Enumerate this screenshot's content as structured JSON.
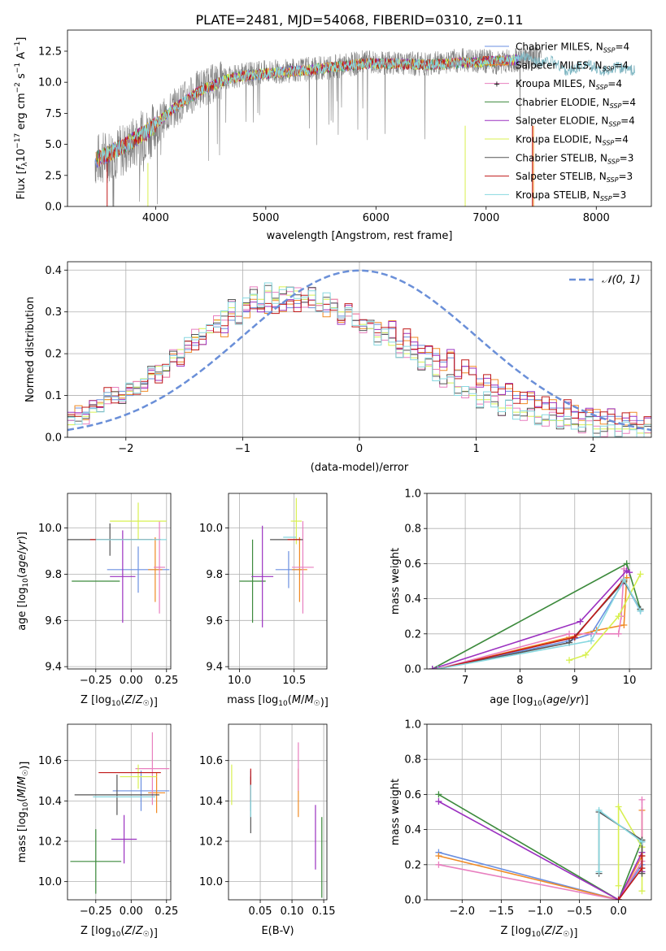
{
  "figure_title": "PLATE=2481, MJD=54068, FIBERID=0310, z=0.11",
  "colors": {
    "Chabrier MILES": "#6a8fe0",
    "Salpeter MILES": "#f08a24",
    "Kroupa MILES": "#e87fbf",
    "Chabrier ELODIE": "#3c8a3c",
    "Salpeter ELODIE": "#9b30c0",
    "Kroupa ELODIE": "#d8f050",
    "Chabrier STELIB": "#555555",
    "Salpeter STELIB": "#c01818",
    "Kroupa STELIB": "#88d8e0",
    "normal": "#6a8fd8",
    "grid": "#b0b0b0"
  },
  "chart_data": [
    {
      "id": "spectrum",
      "type": "line",
      "xlabel": "wavelength [Angstrom, rest frame]",
      "ylabel": "Flux [f_λ 10^-17 erg cm^-2 s^-1 A^-1]",
      "xlim": [
        3200,
        8500
      ],
      "ylim": [
        0,
        14.2
      ],
      "xticks": [
        4000,
        5000,
        6000,
        7000,
        8000
      ],
      "yticks": [
        0.0,
        2.5,
        5.0,
        7.5,
        10.0,
        12.5
      ],
      "grid": false,
      "legend_position": "top-right",
      "legend": [
        "Chabrier MILES, N_SSP=4",
        "Salpeter MILES, N_SSP=4",
        "Kroupa MILES, N_SSP=4",
        "Chabrier ELODIE, N_SSP=4",
        "Salpeter ELODIE, N_SSP=4",
        "Kroupa ELODIE, N_SSP=4",
        "Chabrier STELIB, N_SSP=3",
        "Salpeter STELIB, N_SSP=3",
        "Kroupa STELIB, N_SSP=3"
      ],
      "data_trend": {
        "x": [
          3450,
          3700,
          3950,
          4150,
          4400,
          4700,
          5000,
          5300,
          5600,
          5900,
          6200,
          6500,
          6800,
          7100,
          7300,
          7500
        ],
        "y": [
          3.7,
          4.5,
          6.0,
          7.8,
          9.5,
          10.5,
          10.8,
          11.0,
          11.2,
          11.6,
          11.5,
          11.5,
          11.8,
          11.6,
          11.8,
          12.0
        ]
      },
      "model_trend": {
        "x": [
          3450,
          3700,
          3950,
          4150,
          4400,
          4700,
          5000,
          5300,
          5600,
          5900,
          6200,
          6500,
          6800,
          7100,
          7300
        ],
        "y": [
          3.7,
          4.8,
          6.2,
          7.8,
          9.3,
          10.4,
          10.7,
          10.9,
          11.2,
          11.5,
          11.5,
          11.4,
          11.6,
          11.7,
          11.8
        ]
      },
      "kroupa_stelib_extension": {
        "x": [
          7300,
          7450,
          7600,
          7750,
          7900,
          8050,
          8200,
          8350
        ],
        "y": [
          12.2,
          11.6,
          11.7,
          10.8,
          11.5,
          10.9,
          11.2,
          10.9
        ]
      }
    },
    {
      "id": "residuals",
      "type": "histogram",
      "xlabel": "(data-model)/error",
      "ylabel": "Normed distribution",
      "xlim": [
        -2.5,
        2.5
      ],
      "ylim": [
        0,
        0.42
      ],
      "xticks": [
        -2,
        -1,
        0,
        1,
        2
      ],
      "yticks": [
        0.0,
        0.1,
        0.2,
        0.3,
        0.4
      ],
      "grid": true,
      "legend_position": "top-right",
      "legend": [
        "𝒩(0, 1)"
      ],
      "bin_width": 0.1,
      "bin_start": -2.5,
      "series": [
        {
          "model": "Chabrier MILES",
          "values": [
            0.04,
            0.07,
            0.06,
            0.07,
            0.09,
            0.1,
            0.09,
            0.11,
            0.1,
            0.12,
            0.13,
            0.14,
            0.15,
            0.16,
            0.18,
            0.19,
            0.21,
            0.22,
            0.24,
            0.25,
            0.27,
            0.26,
            0.28,
            0.29,
            0.3,
            0.31,
            0.32,
            0.3,
            0.31,
            0.32,
            0.31,
            0.32,
            0.33,
            0.31,
            0.32,
            0.3,
            0.31,
            0.29,
            0.3,
            0.28,
            0.28,
            0.26,
            0.27,
            0.25,
            0.26,
            0.23,
            0.24,
            0.22,
            0.22,
            0.2,
            0.2,
            0.18,
            0.19,
            0.16,
            0.17,
            0.15,
            0.14,
            0.13,
            0.12,
            0.12,
            0.11,
            0.1,
            0.1,
            0.09,
            0.09,
            0.08,
            0.07,
            0.07,
            0.07,
            0.06,
            0.06,
            0.05,
            0.06,
            0.05,
            0.05,
            0.05,
            0.04,
            0.04,
            0.04,
            0.03
          ]
        },
        {
          "model": "Kroupa ELODIE",
          "values": [
            0.03,
            0.05,
            0.05,
            0.06,
            0.08,
            0.09,
            0.1,
            0.1,
            0.11,
            0.12,
            0.14,
            0.15,
            0.17,
            0.16,
            0.19,
            0.21,
            0.22,
            0.24,
            0.26,
            0.25,
            0.28,
            0.3,
            0.31,
            0.29,
            0.32,
            0.34,
            0.33,
            0.35,
            0.33,
            0.36,
            0.34,
            0.35,
            0.33,
            0.34,
            0.32,
            0.33,
            0.31,
            0.3,
            0.29,
            0.28,
            0.27,
            0.26,
            0.24,
            0.25,
            0.22,
            0.21,
            0.2,
            0.19,
            0.18,
            0.17,
            0.15,
            0.14,
            0.13,
            0.12,
            0.11,
            0.1,
            0.09,
            0.09,
            0.08,
            0.07,
            0.07,
            0.06,
            0.06,
            0.05,
            0.05,
            0.04,
            0.04,
            0.04,
            0.03,
            0.03,
            0.03,
            0.03,
            0.02,
            0.02,
            0.02,
            0.02,
            0.02,
            0.02,
            0.01,
            0.01
          ]
        }
      ],
      "normal_curve": {
        "mu": 0,
        "sigma": 1
      }
    },
    {
      "id": "age-vs-Z",
      "type": "errorbar",
      "xlabel": "Z [log10(Z/Z☉)]",
      "ylabel": "age  [log10(age/yr)]",
      "xlim": [
        -0.45,
        0.28
      ],
      "ylim": [
        9.39,
        10.15
      ],
      "xticks": [
        -0.25,
        0.0,
        0.25
      ],
      "yticks": [
        9.4,
        9.6,
        9.8,
        10.0
      ],
      "grid": true,
      "points": [
        {
          "model": "Chabrier MILES",
          "x": 0.05,
          "xerr": 0.22,
          "y": 9.82,
          "yerr": 0.1
        },
        {
          "model": "Salpeter MILES",
          "x": 0.17,
          "xerr": 0.05,
          "y": 9.82,
          "yerr": 0.14
        },
        {
          "model": "Kroupa MILES",
          "x": 0.2,
          "xerr": 0.04,
          "y": 9.83,
          "yerr": 0.2
        },
        {
          "model": "Chabrier ELODIE",
          "x": -0.25,
          "xerr": 0.17,
          "y": 9.77,
          "yerr": 0.0
        },
        {
          "model": "Salpeter ELODIE",
          "x": -0.06,
          "xerr": 0.09,
          "y": 9.79,
          "yerr": 0.2
        },
        {
          "model": "Kroupa ELODIE",
          "x": 0.05,
          "xerr": 0.2,
          "y": 10.03,
          "yerr": 0.08
        },
        {
          "model": "Chabrier STELIB",
          "x": -0.15,
          "xerr": 0.3,
          "y": 9.95,
          "yerr": 0.07
        },
        {
          "model": "Salpeter STELIB",
          "x": -0.04,
          "xerr": 0.25,
          "y": 9.95,
          "yerr": 0.0
        },
        {
          "model": "Kroupa STELIB",
          "x": 0.0,
          "xerr": 0.25,
          "y": 9.95,
          "yerr": 0.0
        }
      ]
    },
    {
      "id": "age-vs-mass",
      "type": "errorbar",
      "xlabel": "mass [log10(M/M☉)]",
      "ylabel": "",
      "xlim": [
        9.9,
        10.8
      ],
      "ylim": [
        9.39,
        10.15
      ],
      "xticks": [
        10.0,
        10.5
      ],
      "yticks": [
        9.4,
        9.6,
        9.8,
        10.0
      ],
      "grid": true,
      "points": [
        {
          "model": "Chabrier MILES",
          "x": 10.45,
          "xerr": 0.12,
          "y": 9.82,
          "yerr": 0.08
        },
        {
          "model": "Salpeter MILES",
          "x": 10.55,
          "xerr": 0.07,
          "y": 9.82,
          "yerr": 0.14
        },
        {
          "model": "Kroupa MILES",
          "x": 10.58,
          "xerr": 0.1,
          "y": 9.83,
          "yerr": 0.2
        },
        {
          "model": "Chabrier ELODIE",
          "x": 10.12,
          "xerr": 0.12,
          "y": 9.77,
          "yerr": 0.18
        },
        {
          "model": "Salpeter ELODIE",
          "x": 10.21,
          "xerr": 0.1,
          "y": 9.79,
          "yerr": 0.22
        },
        {
          "model": "Kroupa ELODIE",
          "x": 10.52,
          "xerr": 0.05,
          "y": 10.03,
          "yerr": 0.1
        },
        {
          "model": "Chabrier STELIB",
          "x": 10.43,
          "xerr": 0.15,
          "y": 9.95,
          "yerr": 0.0
        },
        {
          "model": "Salpeter STELIB",
          "x": 10.5,
          "xerr": 0.06,
          "y": 9.95,
          "yerr": 0.0
        },
        {
          "model": "Kroupa STELIB",
          "x": 10.46,
          "xerr": 0.06,
          "y": 9.96,
          "yerr": 0.0
        }
      ]
    },
    {
      "id": "massweight-vs-age",
      "type": "line",
      "xlabel": "age  [log10(age/yr)]",
      "ylabel": "mass weight",
      "xlim": [
        6.3,
        10.4
      ],
      "ylim": [
        0,
        1.0
      ],
      "xticks": [
        7,
        8,
        9,
        10
      ],
      "yticks": [
        0.0,
        0.2,
        0.4,
        0.6,
        0.8,
        1.0
      ],
      "grid": true,
      "series": [
        {
          "model": "Chabrier MILES",
          "x": [
            6.5,
            8.9,
            9.3,
            9.9,
            10.2
          ],
          "y": [
            0.0,
            0.16,
            0.2,
            0.5,
            0.33
          ]
        },
        {
          "model": "Salpeter MILES",
          "x": [
            6.5,
            8.9,
            9.4,
            9.9,
            9.95
          ],
          "y": [
            0.0,
            0.18,
            0.22,
            0.25,
            0.52
          ]
        },
        {
          "model": "Kroupa MILES",
          "x": [
            6.5,
            8.9,
            9.8,
            9.85,
            9.9
          ],
          "y": [
            0.0,
            0.2,
            0.2,
            0.3,
            0.57
          ]
        },
        {
          "model": "Chabrier ELODIE",
          "x": [
            6.4,
            9.95,
            10.2
          ],
          "y": [
            0.0,
            0.6,
            0.34
          ]
        },
        {
          "model": "Salpeter ELODIE",
          "x": [
            6.4,
            9.1,
            9.95,
            10.0
          ],
          "y": [
            0.0,
            0.27,
            0.56,
            0.55
          ]
        },
        {
          "model": "Kroupa ELODIE",
          "x": [
            8.9,
            9.2,
            9.8,
            10.2
          ],
          "y": [
            0.05,
            0.08,
            0.3,
            0.54
          ]
        },
        {
          "model": "Chabrier STELIB",
          "x": [
            6.5,
            8.9,
            9.9,
            10.2
          ],
          "y": [
            0.0,
            0.15,
            0.5,
            0.34
          ]
        },
        {
          "model": "Salpeter STELIB",
          "x": [
            6.5,
            9.0,
            9.9
          ],
          "y": [
            0.0,
            0.18,
            0.51
          ]
        },
        {
          "model": "Kroupa STELIB",
          "x": [
            6.5,
            9.3,
            9.9,
            10.2
          ],
          "y": [
            0.0,
            0.16,
            0.51,
            0.33
          ]
        }
      ]
    },
    {
      "id": "mass-vs-Z",
      "type": "errorbar",
      "xlabel": "Z [log10(Z/Z☉)]",
      "ylabel": "mass [log10(M/M☉)]",
      "xlim": [
        -0.45,
        0.28
      ],
      "ylim": [
        9.91,
        10.78
      ],
      "xticks": [
        -0.25,
        0.0,
        0.25
      ],
      "yticks": [
        10.0,
        10.2,
        10.4,
        10.6
      ],
      "grid": true,
      "points": [
        {
          "model": "Chabrier MILES",
          "x": 0.07,
          "xerr": 0.2,
          "y": 10.45,
          "yerr": 0.1
        },
        {
          "model": "Salpeter MILES",
          "x": 0.18,
          "xerr": 0.06,
          "y": 10.44,
          "yerr": 0.1
        },
        {
          "model": "Kroupa MILES",
          "x": 0.15,
          "xerr": 0.12,
          "y": 10.56,
          "yerr": 0.18
        },
        {
          "model": "Chabrier ELODIE",
          "x": -0.25,
          "xerr": 0.18,
          "y": 10.1,
          "yerr": 0.16
        },
        {
          "model": "Salpeter ELODIE",
          "x": -0.05,
          "xerr": 0.09,
          "y": 10.21,
          "yerr": 0.12
        },
        {
          "model": "Kroupa ELODIE",
          "x": 0.05,
          "xerr": 0.13,
          "y": 10.52,
          "yerr": 0.06
        },
        {
          "model": "Chabrier STELIB",
          "x": -0.1,
          "xerr": 0.3,
          "y": 10.43,
          "yerr": 0.1
        },
        {
          "model": "Salpeter STELIB",
          "x": -0.01,
          "xerr": 0.22,
          "y": 10.54,
          "yerr": 0.0
        },
        {
          "model": "Kroupa STELIB",
          "x": -0.05,
          "xerr": 0.22,
          "y": 10.42,
          "yerr": 0.0
        }
      ]
    },
    {
      "id": "mass-vs-ebv",
      "type": "errorbar",
      "xlabel": "E(B-V)",
      "ylabel": "",
      "xlim": [
        0.0,
        0.155
      ],
      "ylim": [
        9.91,
        10.78
      ],
      "xticks": [
        0.05,
        0.1,
        0.15
      ],
      "yticks": [
        10.0,
        10.2,
        10.4,
        10.6
      ],
      "grid": true,
      "points": [
        {
          "model": "Chabrier MILES",
          "x": 0.035,
          "xerr": 0,
          "y": 10.45,
          "yerr": 0.1
        },
        {
          "model": "Salpeter MILES",
          "x": 0.11,
          "xerr": 0,
          "y": 10.44,
          "yerr": 0.12
        },
        {
          "model": "Kroupa MILES",
          "x": 0.11,
          "xerr": 0,
          "y": 10.57,
          "yerr": 0.12
        },
        {
          "model": "Chabrier ELODIE",
          "x": 0.147,
          "xerr": 0,
          "y": 10.12,
          "yerr": 0.2
        },
        {
          "model": "Salpeter ELODIE",
          "x": 0.137,
          "xerr": 0,
          "y": 10.22,
          "yerr": 0.16
        },
        {
          "model": "Kroupa ELODIE",
          "x": 0.005,
          "xerr": 0,
          "y": 10.48,
          "yerr": 0.1
        },
        {
          "model": "Chabrier STELIB",
          "x": 0.035,
          "xerr": 0,
          "y": 10.38,
          "yerr": 0.14
        },
        {
          "model": "Salpeter STELIB",
          "x": 0.035,
          "xerr": 0,
          "y": 10.48,
          "yerr": 0.08
        },
        {
          "model": "Kroupa STELIB",
          "x": 0.035,
          "xerr": 0,
          "y": 10.4,
          "yerr": 0.08
        }
      ]
    },
    {
      "id": "massweight-vs-Z",
      "type": "line",
      "xlabel": "Z [log10(Z/Z☉)]",
      "ylabel": "mass weight",
      "xlim": [
        -2.45,
        0.42
      ],
      "ylim": [
        0,
        1.0
      ],
      "xticks": [
        -2.0,
        -1.5,
        -1.0,
        -0.5,
        0.0
      ],
      "yticks": [
        0.0,
        0.2,
        0.4,
        0.6,
        0.8,
        1.0
      ],
      "grid": true,
      "series": [
        {
          "model": "Chabrier MILES",
          "x": [
            -2.3,
            0.0,
            0.3,
            0.3
          ],
          "y": [
            0.27,
            0.0,
            0.2,
            0.33
          ]
        },
        {
          "model": "Salpeter MILES",
          "x": [
            -2.3,
            0.0,
            0.3,
            0.3
          ],
          "y": [
            0.25,
            0.0,
            0.25,
            0.51
          ]
        },
        {
          "model": "Kroupa MILES",
          "x": [
            -2.3,
            0.0,
            0.3,
            0.3
          ],
          "y": [
            0.2,
            0.0,
            0.22,
            0.57
          ]
        },
        {
          "model": "Chabrier ELODIE",
          "x": [
            -2.3,
            0.0,
            0.3
          ],
          "y": [
            0.6,
            0.0,
            0.34
          ]
        },
        {
          "model": "Salpeter ELODIE",
          "x": [
            -2.3,
            0.0,
            0.3,
            0.3
          ],
          "y": [
            0.56,
            0.0,
            0.27,
            0.16
          ]
        },
        {
          "model": "Kroupa ELODIE",
          "x": [
            0.0,
            0.0,
            0.3,
            0.3
          ],
          "y": [
            0.08,
            0.53,
            0.3,
            0.05
          ]
        },
        {
          "model": "Chabrier STELIB",
          "x": [
            -0.25,
            -0.25,
            0.3,
            0.3
          ],
          "y": [
            0.15,
            0.5,
            0.34,
            0.15
          ]
        },
        {
          "model": "Salpeter STELIB",
          "x": [
            0.0,
            0.3,
            0.3
          ],
          "y": [
            0.0,
            0.18,
            0.25
          ]
        },
        {
          "model": "Kroupa STELIB",
          "x": [
            -0.25,
            -0.25,
            0.3
          ],
          "y": [
            0.16,
            0.51,
            0.33
          ]
        }
      ]
    }
  ]
}
